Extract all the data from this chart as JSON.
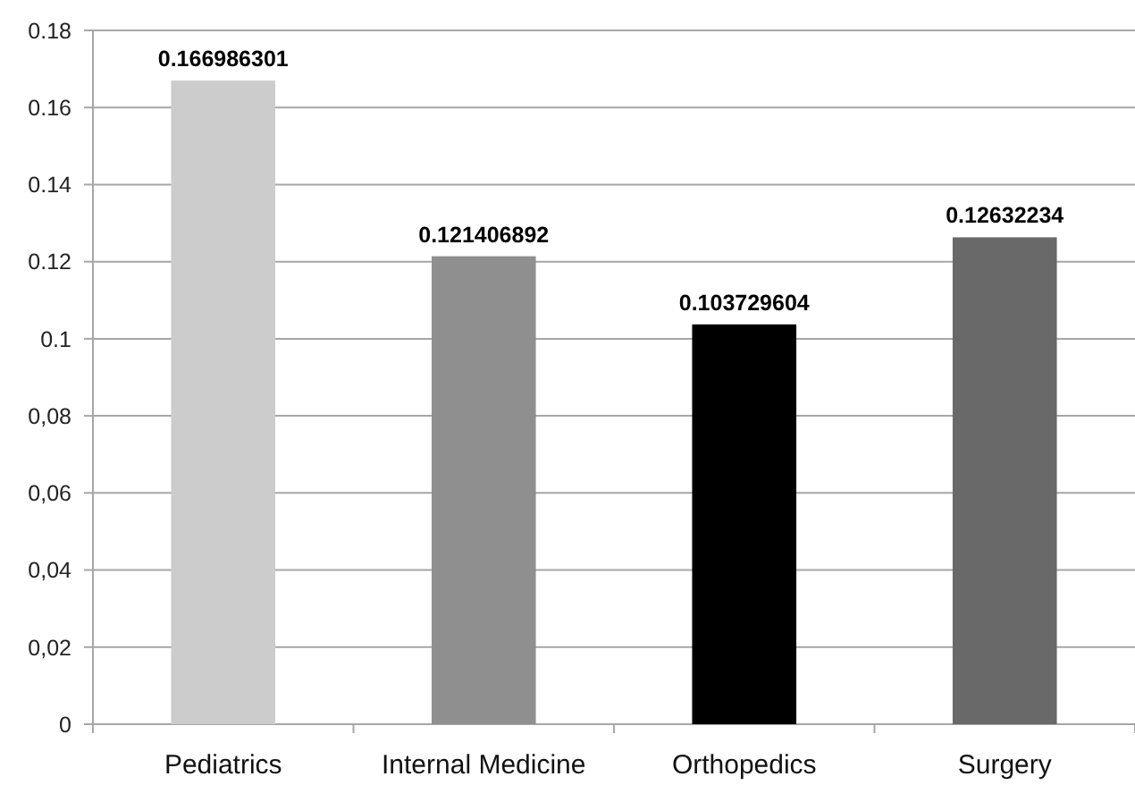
{
  "chart_data": {
    "type": "bar",
    "categories": [
      "Pediatrics",
      "Internal Medicine",
      "Orthopedics",
      "Surgery"
    ],
    "values": [
      0.166986301,
      0.121406892,
      0.103729604,
      0.12632234
    ],
    "colors": [
      "#cccccc",
      "#8f8f8f",
      "#000000",
      "#696969"
    ],
    "ylim": [
      0,
      0.18
    ],
    "yticks": [
      0,
      {
        "value": 0.02,
        "label": "0,02"
      },
      {
        "value": 0.04,
        "label": "0,04"
      },
      {
        "value": 0.06,
        "label": "0,06"
      },
      {
        "value": 0.08,
        "label": "0,08"
      },
      0.1,
      0.12,
      0.14,
      0.16,
      0.18
    ],
    "grid": "y",
    "data_labels": true
  }
}
